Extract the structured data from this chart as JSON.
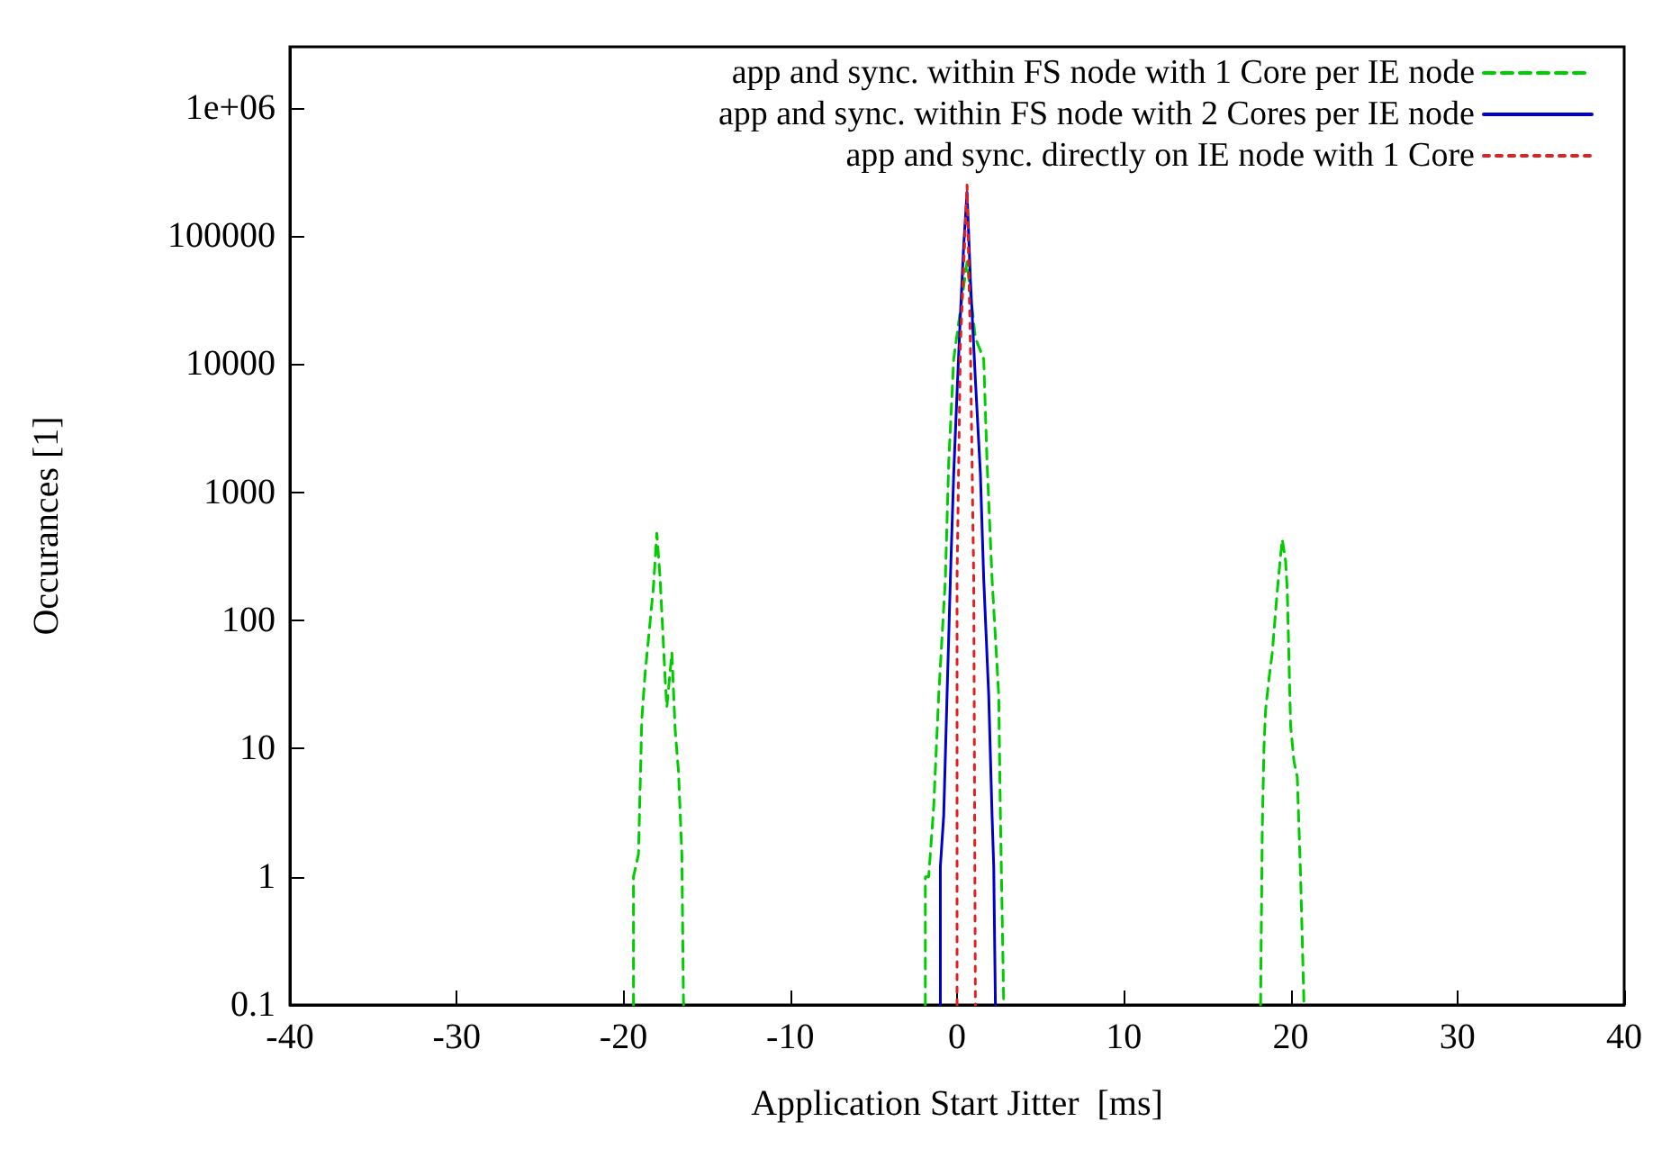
{
  "chart_data": {
    "type": "line",
    "xlabel": "Application Start Jitter  [ms]",
    "ylabel": "Occurances [1]",
    "log": "y",
    "grid": false,
    "legend": "top right",
    "xlim": [
      -40,
      40
    ],
    "xticks": [
      -40,
      -30,
      -20,
      -10,
      0,
      10,
      20,
      30,
      40
    ],
    "ylim": [
      0.1,
      3000000
    ],
    "yticks": [
      0.1,
      1,
      10,
      100,
      1000,
      10000,
      100000,
      {
        "value": 1000000,
        "label": "1e+06"
      }
    ],
    "series": [
      {
        "name": "app and sync. within FS node with 1 Core per IE node",
        "color": "#00cc00",
        "line_style": "dashed",
        "x": [
          -19.4,
          -19.4,
          -19.1,
          -18.9,
          -18.7,
          -18.5,
          -18.2,
          -18.0,
          -17.8,
          -17.5,
          -17.4,
          -17.1,
          -16.9,
          -16.7,
          -16.5,
          -16.4,
          -10,
          -1.9,
          -1.9,
          -1.7,
          -1.4,
          -1.1,
          -0.7,
          -0.5,
          -0.2,
          0,
          0.6,
          1.1,
          1.6,
          1.8,
          2.1,
          2.5,
          2.6,
          2.8,
          10,
          18.2,
          18.3,
          18.4,
          18.5,
          18.7,
          18.9,
          19.2,
          19.4,
          19.5,
          19.7,
          19.8,
          20.0,
          20.2,
          20.4,
          20.6,
          20.8
        ],
        "values": [
          0.1,
          1,
          1.5,
          17,
          39,
          72,
          185,
          480,
          210,
          35,
          21,
          56,
          14,
          6.6,
          1.5,
          0.1,
          null,
          0.1,
          1,
          1,
          3.5,
          26,
          210,
          1700,
          11000,
          17000,
          63000,
          16000,
          11000,
          1700,
          210,
          26,
          3,
          0.1,
          null,
          0.1,
          2.3,
          10,
          20,
          35,
          56,
          170,
          320,
          430,
          290,
          170,
          15,
          8,
          6,
          1,
          0.1
        ]
      },
      {
        "name": "app and sync. within FS node with 2 Cores per IE node",
        "color": "#0000cc",
        "line_style": "solid",
        "x": [
          -1.0,
          -1.0,
          -0.8,
          -0.6,
          -0.4,
          -0.2,
          0,
          0.2,
          0.4,
          0.6,
          0.8,
          1.1,
          1.4,
          1.6,
          1.9,
          2.1,
          2.2,
          2.3
        ],
        "values": [
          0.1,
          1.2,
          3,
          26,
          210,
          1400,
          6000,
          24000,
          85000,
          220000,
          46000,
          7600,
          1400,
          210,
          26,
          3,
          1.2,
          0.1
        ]
      },
      {
        "name": "app and sync. directly on IE node with 1 Core",
        "color": "#dd2222",
        "line_style": "dotted",
        "x": [
          0,
          0,
          0.2,
          0.6,
          0.8,
          1.0,
          1.1
        ],
        "values": [
          0.1,
          210,
          14000,
          250000,
          14000,
          210,
          0.1
        ]
      }
    ]
  }
}
